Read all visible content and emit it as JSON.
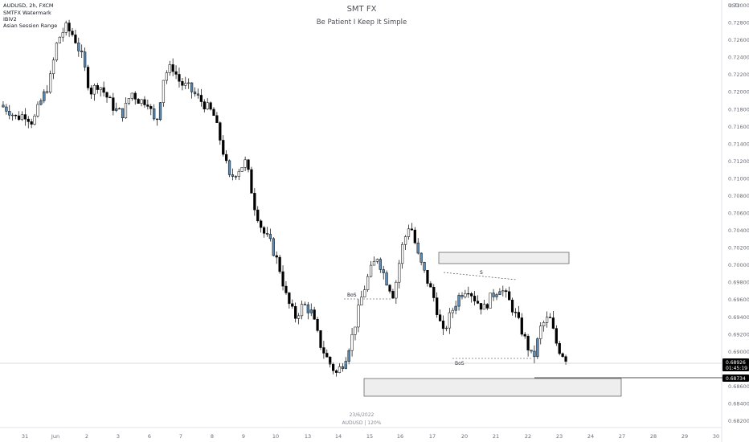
{
  "header": {
    "symbol_line": "AUDUSD, 2h, FXCM",
    "indicators": [
      "SMTFX Watermark",
      "IBiV2",
      "Asian Session Range"
    ]
  },
  "watermark": {
    "title": "SMT FX",
    "subtitle": "Be Patient I Keep It Simple",
    "date": "23/6/2022",
    "symbol_tf": "AUDUSD | 120%"
  },
  "price_axis": {
    "currency": "USD",
    "ticks": [
      "0.73000",
      "0.72800",
      "0.72600",
      "0.72400",
      "0.72200",
      "0.72000",
      "0.71800",
      "0.71600",
      "0.71400",
      "0.71200",
      "0.71000",
      "0.70800",
      "0.70600",
      "0.70400",
      "0.70200",
      "0.70000",
      "0.69800",
      "0.69600",
      "0.69400",
      "0.69200",
      "0.69000",
      "0.68800",
      "0.68600",
      "0.68400",
      "0.68200"
    ]
  },
  "time_axis": {
    "ticks": [
      "31",
      "Jun",
      "2",
      "3",
      "6",
      "7",
      "8",
      "9",
      "10",
      "13",
      "14",
      "15",
      "16",
      "17",
      "20",
      "21",
      "22",
      "23",
      "24",
      "27",
      "28",
      "29",
      "30"
    ]
  },
  "price_tags": {
    "current_price": "0.68926",
    "countdown": "01:45:19",
    "ref_price": "0.68734"
  },
  "annotations": {
    "bos_top": "BoS",
    "bos_bottom": "BoS",
    "swing_label": "S"
  },
  "colors": {
    "bull": "#ffffff",
    "bear": "#000000",
    "asian_session": "#5b8db8",
    "wick": "#000000",
    "zone_fill": "#eeeeee",
    "zone_stroke": "#555555",
    "current_tag_bg": "#000000",
    "ref_tag_bg": "#000000"
  },
  "chart_data": {
    "type": "candlestick",
    "symbol": "AUDUSD",
    "timeframe": "2h",
    "ylim": [
      0.6815,
      0.731
    ],
    "x_axis": "trading days 31 May – 30 Jun 2022",
    "candles_close_path": [
      [
        0,
        0.7185
      ],
      [
        1,
        0.718
      ],
      [
        2,
        0.717
      ],
      [
        3,
        0.7175
      ],
      [
        4,
        0.7165
      ],
      [
        5,
        0.719
      ],
      [
        6,
        0.721
      ],
      [
        7,
        0.726
      ],
      [
        8,
        0.7275
      ],
      [
        9,
        0.7265
      ],
      [
        10,
        0.724
      ],
      [
        11,
        0.72
      ],
      [
        12,
        0.721
      ],
      [
        13,
        0.7195
      ],
      [
        14,
        0.718
      ],
      [
        15,
        0.7175
      ],
      [
        16,
        0.72
      ],
      [
        17,
        0.719
      ],
      [
        18,
        0.719
      ],
      [
        19,
        0.716
      ],
      [
        20,
        0.722
      ],
      [
        21,
        0.723
      ],
      [
        22,
        0.721
      ],
      [
        23,
        0.7205
      ],
      [
        24,
        0.7195
      ],
      [
        25,
        0.7185
      ],
      [
        26,
        0.7175
      ],
      [
        27,
        0.714
      ],
      [
        28,
        0.71
      ],
      [
        29,
        0.711
      ],
      [
        30,
        0.712
      ],
      [
        31,
        0.707
      ],
      [
        32,
        0.704
      ],
      [
        33,
        0.7025
      ],
      [
        34,
        0.7
      ],
      [
        35,
        0.696
      ],
      [
        36,
        0.694
      ],
      [
        37,
        0.6955
      ],
      [
        38,
        0.6945
      ],
      [
        39,
        0.691
      ],
      [
        40,
        0.689
      ],
      [
        41,
        0.6875
      ],
      [
        42,
        0.689
      ],
      [
        43,
        0.692
      ],
      [
        44,
        0.696
      ],
      [
        45,
        0.699
      ],
      [
        46,
        0.701
      ],
      [
        47,
        0.6985
      ],
      [
        48,
        0.6965
      ],
      [
        49,
        0.702
      ],
      [
        50,
        0.705
      ],
      [
        51,
        0.701
      ],
      [
        52,
        0.6985
      ],
      [
        53,
        0.696
      ],
      [
        54,
        0.692
      ],
      [
        55,
        0.6945
      ],
      [
        56,
        0.6965
      ],
      [
        57,
        0.6975
      ],
      [
        58,
        0.696
      ],
      [
        59,
        0.695
      ],
      [
        60,
        0.6965
      ],
      [
        61,
        0.6975
      ],
      [
        62,
        0.696
      ],
      [
        63,
        0.694
      ],
      [
        64,
        0.6915
      ],
      [
        65,
        0.689
      ],
      [
        66,
        0.693
      ],
      [
        67,
        0.694
      ],
      [
        68,
        0.6905
      ],
      [
        69,
        0.6893
      ]
    ],
    "zones": [
      {
        "top": 0.703,
        "bottom": 0.7015,
        "from_day": "17",
        "to_day": "24"
      },
      {
        "top": 0.68734,
        "bottom": 0.6851,
        "from_day": "15",
        "to_day": "27"
      }
    ],
    "last_price": 0.68926,
    "reference_price": 0.68734
  }
}
